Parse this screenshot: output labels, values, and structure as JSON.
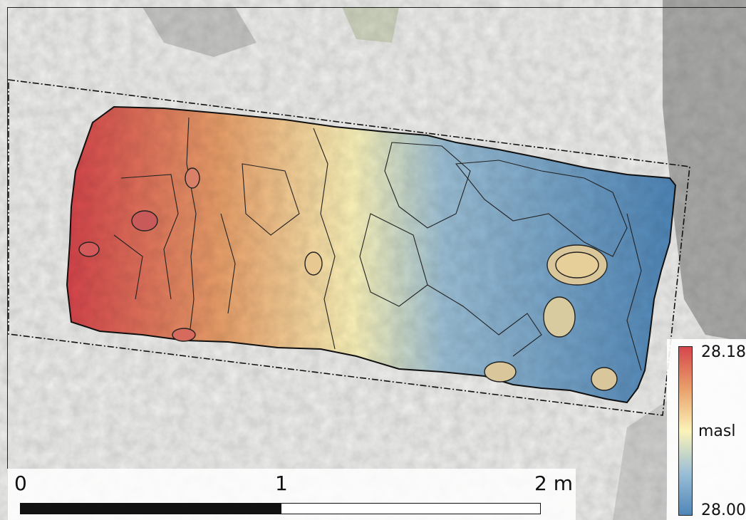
{
  "legend": {
    "max_label": "28.18",
    "unit_label": "masl",
    "min_label": "28.00",
    "colors": [
      "#d6464c",
      "#e9a06a",
      "#fbf3b9",
      "#9bbfd6",
      "#4f86b8"
    ]
  },
  "scalebar": {
    "label_start": "0",
    "label_mid": "1",
    "label_end": "2 m"
  },
  "colors": {
    "background": "#eeeeec",
    "high": "#d6464c",
    "low": "#4f86b8",
    "outline": "#222222"
  }
}
